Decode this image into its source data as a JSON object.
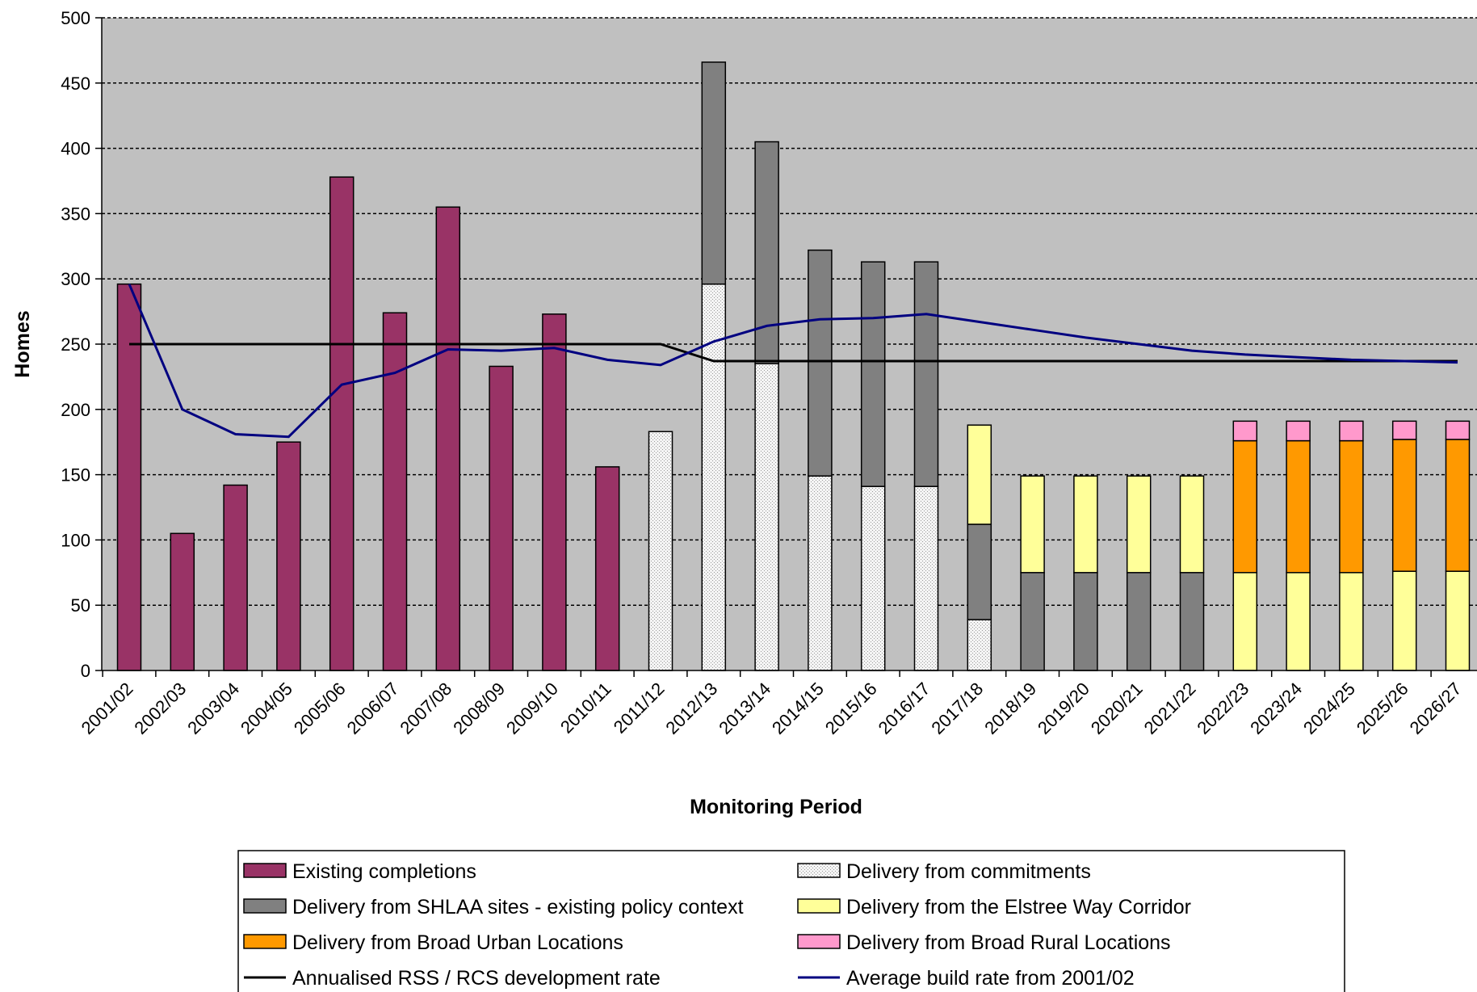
{
  "chart_data": {
    "type": "bar",
    "stacked": true,
    "xlabel": "Monitoring Period",
    "ylabel": "Homes",
    "ylim": [
      0,
      500
    ],
    "yticks": [
      0,
      50,
      100,
      150,
      200,
      250,
      300,
      350,
      400,
      450,
      500
    ],
    "grid": "horizontal dashed",
    "legend_position": "bottom",
    "plot_background": "#c0c0c0",
    "categories": [
      "2001/02",
      "2002/03",
      "2003/04",
      "2004/05",
      "2005/06",
      "2006/07",
      "2007/08",
      "2008/09",
      "2009/10",
      "2010/11",
      "2011/12",
      "2012/13",
      "2013/14",
      "2014/15",
      "2015/16",
      "2016/17",
      "2017/18",
      "2018/19",
      "2019/20",
      "2020/21",
      "2021/22",
      "2022/23",
      "2023/24",
      "2024/25",
      "2025/26",
      "2026/27"
    ],
    "series": [
      {
        "name": "Existing completions",
        "kind": "bar",
        "color": "#993366",
        "values": [
          296,
          105,
          142,
          175,
          378,
          274,
          355,
          233,
          273,
          156,
          0,
          0,
          0,
          0,
          0,
          0,
          0,
          0,
          0,
          0,
          0,
          0,
          0,
          0,
          0,
          0
        ]
      },
      {
        "name": "Delivery from commitments",
        "kind": "bar",
        "color": "#f2f2f2",
        "pattern": "dotted",
        "values": [
          0,
          0,
          0,
          0,
          0,
          0,
          0,
          0,
          0,
          0,
          183,
          296,
          235,
          149,
          141,
          141,
          39,
          0,
          0,
          0,
          0,
          0,
          0,
          0,
          0,
          0
        ]
      },
      {
        "name": "Delivery from SHLAA sites - existing policy context",
        "kind": "bar",
        "color": "#808080",
        "values": [
          0,
          0,
          0,
          0,
          0,
          0,
          0,
          0,
          0,
          0,
          0,
          170,
          170,
          173,
          172,
          172,
          73,
          75,
          75,
          75,
          75,
          0,
          0,
          0,
          0,
          0
        ]
      },
      {
        "name": "Delivery from the Elstree Way Corridor",
        "kind": "bar",
        "color": "#ffff99",
        "values": [
          0,
          0,
          0,
          0,
          0,
          0,
          0,
          0,
          0,
          0,
          0,
          0,
          0,
          0,
          0,
          0,
          76,
          74,
          74,
          74,
          74,
          75,
          75,
          75,
          76,
          76
        ]
      },
      {
        "name": "Delivery from Broad Urban Locations",
        "kind": "bar",
        "color": "#ff9900",
        "values": [
          0,
          0,
          0,
          0,
          0,
          0,
          0,
          0,
          0,
          0,
          0,
          0,
          0,
          0,
          0,
          0,
          0,
          0,
          0,
          0,
          0,
          101,
          101,
          101,
          101,
          101
        ]
      },
      {
        "name": "Delivery from Broad Rural Locations",
        "kind": "bar",
        "color": "#ff99cc",
        "values": [
          0,
          0,
          0,
          0,
          0,
          0,
          0,
          0,
          0,
          0,
          0,
          0,
          0,
          0,
          0,
          0,
          0,
          0,
          0,
          0,
          0,
          15,
          15,
          15,
          14,
          14
        ]
      },
      {
        "name": "Annualised RSS / RCS development rate",
        "kind": "line",
        "color": "#000000",
        "values": [
          250,
          250,
          250,
          250,
          250,
          250,
          250,
          250,
          250,
          250,
          250,
          237,
          237,
          237,
          237,
          237,
          237,
          237,
          237,
          237,
          237,
          237,
          237,
          237,
          237,
          237
        ]
      },
      {
        "name": "Average build rate from 2001/02",
        "kind": "line",
        "color": "#000080",
        "values": [
          296,
          200,
          181,
          179,
          219,
          228,
          246,
          245,
          247,
          238,
          234,
          252,
          264,
          269,
          270,
          273,
          267,
          261,
          255,
          250,
          245,
          242,
          240,
          238,
          237,
          236
        ]
      }
    ],
    "legend_order": [
      0,
      1,
      2,
      3,
      4,
      5,
      6,
      7
    ]
  }
}
